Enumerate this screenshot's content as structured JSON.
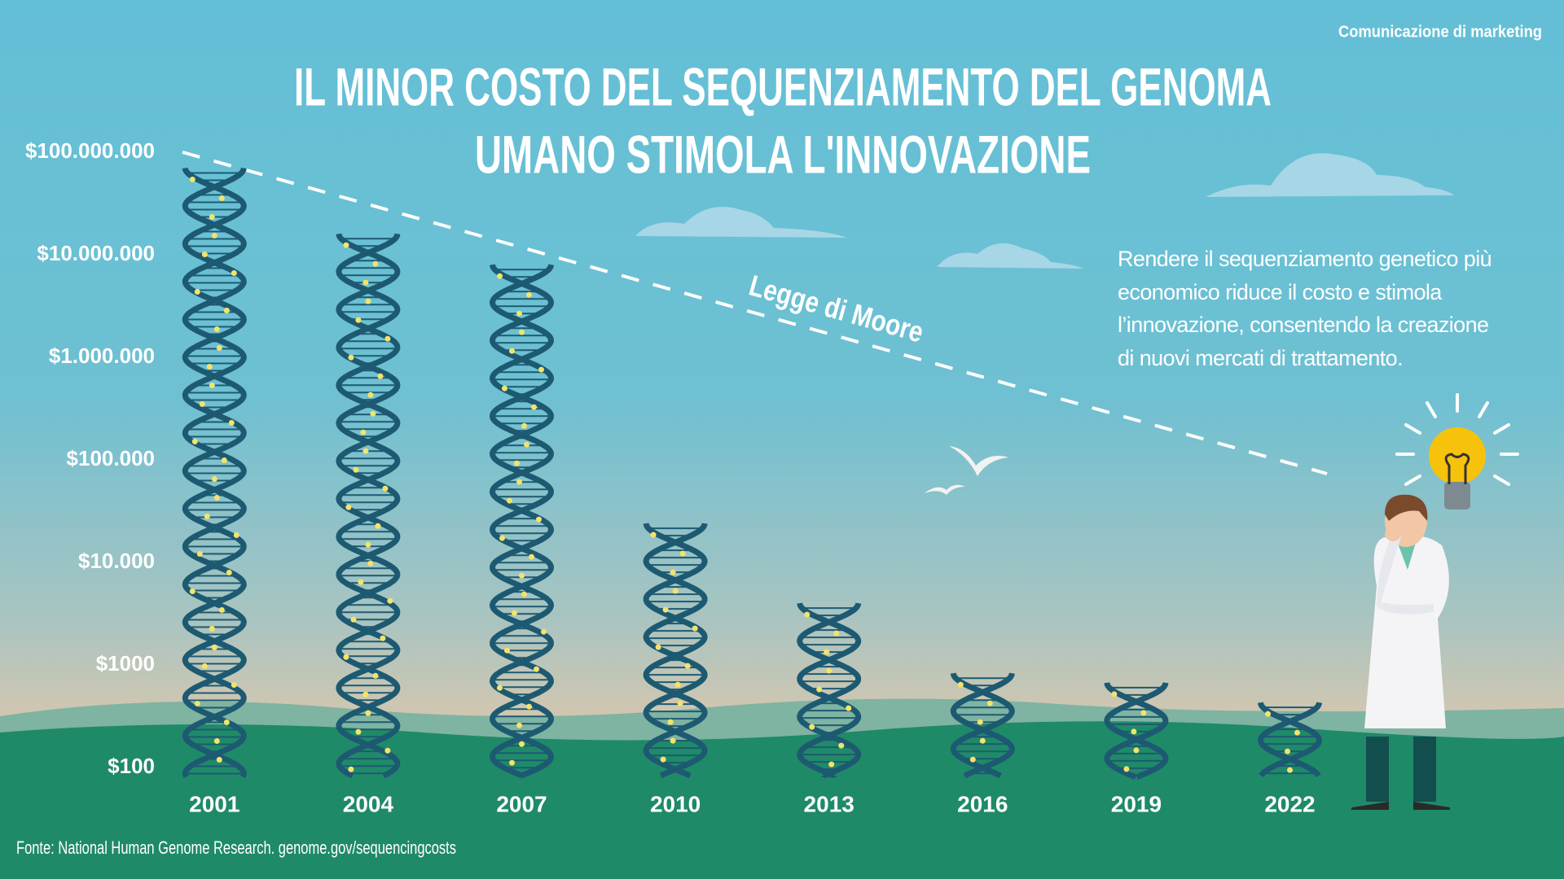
{
  "chart_data": {
    "type": "dna-bar",
    "header": "Comunicazione di marketing",
    "title": [
      "IL MINOR COSTO DEL SEQUENZIAMENTO DEL GENOMA",
      "UMANO STIMOLA L'INNOVAZIONE"
    ],
    "annotation": "Legge di Moore",
    "description": "Rendere il sequenziamento genetico più economico riduce il costo e stimola l’innovazione, consentendo la creazione di nuovi mercati di trattamento.",
    "source": "Fonte: National Human Genome Research. genome.gov/sequencingcosts",
    "categories": [
      "2001",
      "2004",
      "2007",
      "2010",
      "2013",
      "2016",
      "2019",
      "2022"
    ],
    "values": [
      70000000,
      16000000,
      8000000,
      24000,
      4000,
      830,
      670,
      430
    ],
    "color": "#1d5a72",
    "log_scale": true,
    "ylim": [
      100,
      100000000
    ],
    "yticks": [
      {
        "value": 100,
        "label": "$100"
      },
      {
        "value": 1000,
        "label": "$1000"
      },
      {
        "value": 10000,
        "label": "$10.000"
      },
      {
        "value": 100000,
        "label": "$100.000"
      },
      {
        "value": 1000000,
        "label": "$1.000.000"
      },
      {
        "value": 10000000,
        "label": "$10.000.000"
      },
      {
        "value": 100000000,
        "label": "$100.000.000"
      }
    ],
    "grid": false
  }
}
